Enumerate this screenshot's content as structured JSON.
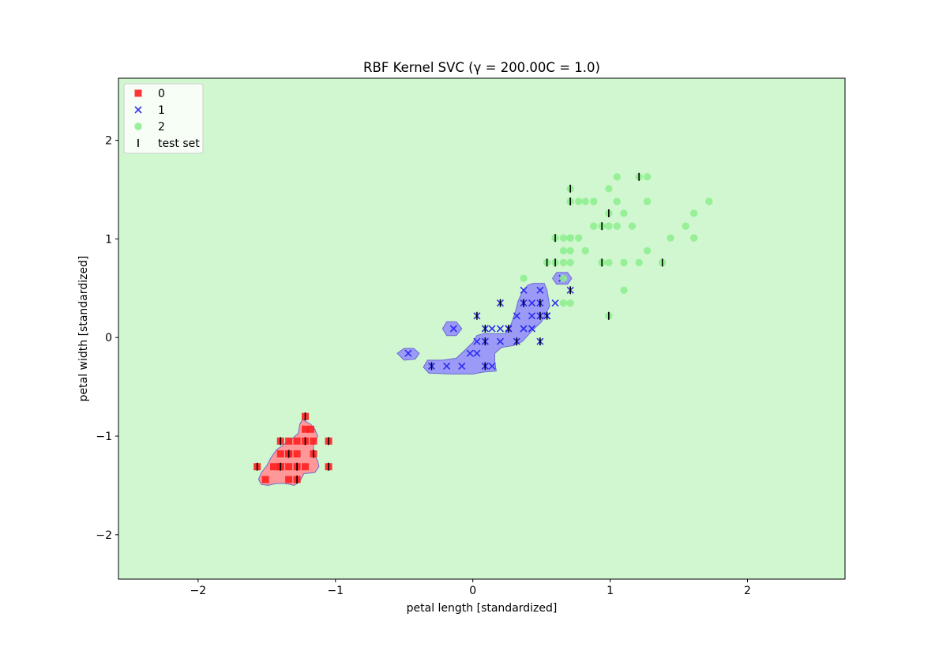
{
  "chart_data": {
    "type": "scatter",
    "title": "RBF Kernel SVC (γ = 200.00C = 1.0)",
    "xlabel": "petal length [standardized]",
    "ylabel": "petal width [standardized]",
    "xlim": [
      -2.58,
      2.71
    ],
    "ylim": [
      -2.45,
      2.63
    ],
    "xticks": [
      -2,
      -1,
      0,
      1,
      2
    ],
    "yticks": [
      -2,
      -1,
      0,
      1,
      2
    ],
    "xtick_labels": [
      "−2",
      "−1",
      "0",
      "1",
      "2"
    ],
    "ytick_labels": [
      "−2",
      "−1",
      "0",
      "1",
      "2"
    ],
    "grid": false,
    "legend_position": "upper-left",
    "colors": {
      "background_region": "#d1f7d1",
      "class0_region": "#ff9898",
      "class1_region": "#9b9bf7",
      "class0_marker": "#ff2020",
      "class1_marker": "#2020ee",
      "class2_marker": "#90ee90",
      "test_marker": "#000000"
    },
    "legend": [
      {
        "label": "0",
        "marker": "square"
      },
      {
        "label": "1",
        "marker": "x"
      },
      {
        "label": "2",
        "marker": "circle"
      },
      {
        "label": "test set",
        "marker": "vline"
      }
    ],
    "series": [
      {
        "name": "0",
        "marker": "square",
        "points": [
          [
            -1.22,
            -0.8
          ],
          [
            -1.28,
            -1.05
          ],
          [
            -1.22,
            -1.05
          ],
          [
            -1.05,
            -1.05
          ],
          [
            -1.4,
            -1.05
          ],
          [
            -1.34,
            -1.18
          ],
          [
            -1.28,
            -1.18
          ],
          [
            -1.4,
            -1.18
          ],
          [
            -1.16,
            -1.18
          ],
          [
            -1.45,
            -1.31
          ],
          [
            -1.4,
            -1.31
          ],
          [
            -1.34,
            -1.31
          ],
          [
            -1.28,
            -1.31
          ],
          [
            -1.22,
            -1.31
          ],
          [
            -1.57,
            -1.31
          ],
          [
            -1.05,
            -1.31
          ],
          [
            -1.51,
            -1.44
          ],
          [
            -1.34,
            -1.44
          ],
          [
            -1.28,
            -1.44
          ],
          [
            -1.4,
            -1.31
          ],
          [
            -1.34,
            -1.18
          ],
          [
            -1.22,
            -0.93
          ],
          [
            -1.18,
            -0.93
          ],
          [
            -1.16,
            -1.05
          ],
          [
            -1.34,
            -1.05
          ]
        ]
      },
      {
        "name": "1",
        "marker": "x",
        "points": [
          [
            0.37,
            0.48
          ],
          [
            0.49,
            0.48
          ],
          [
            0.71,
            0.48
          ],
          [
            0.37,
            0.35
          ],
          [
            0.43,
            0.35
          ],
          [
            0.49,
            0.35
          ],
          [
            0.2,
            0.35
          ],
          [
            0.6,
            0.35
          ],
          [
            0.32,
            0.22
          ],
          [
            0.43,
            0.22
          ],
          [
            0.49,
            0.22
          ],
          [
            0.54,
            0.22
          ],
          [
            0.03,
            0.22
          ],
          [
            0.09,
            0.09
          ],
          [
            0.14,
            0.09
          ],
          [
            0.2,
            0.09
          ],
          [
            0.26,
            0.09
          ],
          [
            0.37,
            0.09
          ],
          [
            0.43,
            0.09
          ],
          [
            -0.14,
            0.09
          ],
          [
            0.03,
            -0.04
          ],
          [
            0.09,
            -0.04
          ],
          [
            0.2,
            -0.04
          ],
          [
            0.32,
            -0.04
          ],
          [
            0.49,
            -0.04
          ],
          [
            -0.02,
            -0.16
          ],
          [
            0.03,
            -0.16
          ],
          [
            -0.47,
            -0.16
          ],
          [
            -0.3,
            -0.29
          ],
          [
            -0.19,
            -0.29
          ],
          [
            -0.08,
            -0.29
          ],
          [
            0.09,
            -0.29
          ],
          [
            0.14,
            -0.29
          ],
          [
            0.65,
            0.6
          ],
          [
            0.26,
            0.09
          ],
          [
            0.54,
            0.22
          ]
        ]
      },
      {
        "name": "2",
        "marker": "circle",
        "points": [
          [
            1.05,
            1.63
          ],
          [
            1.27,
            1.63
          ],
          [
            0.99,
            1.51
          ],
          [
            0.71,
            1.51
          ],
          [
            0.71,
            1.38
          ],
          [
            0.77,
            1.38
          ],
          [
            0.82,
            1.38
          ],
          [
            0.88,
            1.38
          ],
          [
            1.05,
            1.38
          ],
          [
            1.27,
            1.38
          ],
          [
            1.72,
            1.38
          ],
          [
            0.99,
            1.26
          ],
          [
            1.1,
            1.26
          ],
          [
            1.61,
            1.26
          ],
          [
            0.88,
            1.13
          ],
          [
            0.94,
            1.13
          ],
          [
            0.99,
            1.13
          ],
          [
            1.05,
            1.13
          ],
          [
            1.16,
            1.13
          ],
          [
            1.55,
            1.13
          ],
          [
            0.6,
            1.01
          ],
          [
            0.66,
            1.01
          ],
          [
            0.71,
            1.01
          ],
          [
            0.77,
            1.01
          ],
          [
            1.44,
            1.01
          ],
          [
            1.61,
            1.01
          ],
          [
            0.66,
            0.88
          ],
          [
            0.71,
            0.88
          ],
          [
            0.82,
            0.88
          ],
          [
            1.27,
            0.88
          ],
          [
            0.54,
            0.76
          ],
          [
            0.6,
            0.76
          ],
          [
            0.66,
            0.76
          ],
          [
            0.71,
            0.76
          ],
          [
            0.94,
            0.76
          ],
          [
            0.99,
            0.76
          ],
          [
            1.1,
            0.76
          ],
          [
            1.21,
            0.76
          ],
          [
            1.38,
            0.76
          ],
          [
            0.37,
            0.6
          ],
          [
            0.66,
            0.6
          ],
          [
            0.66,
            0.35
          ],
          [
            0.71,
            0.35
          ],
          [
            1.1,
            0.48
          ],
          [
            0.99,
            0.22
          ],
          [
            1.21,
            1.63
          ],
          [
            0.71,
            1.01
          ]
        ]
      },
      {
        "name": "test set",
        "marker": "vline",
        "points": [
          [
            -1.22,
            -0.8
          ],
          [
            -1.22,
            -1.05
          ],
          [
            -1.05,
            -1.05
          ],
          [
            -1.4,
            -1.05
          ],
          [
            -1.16,
            -1.18
          ],
          [
            -1.34,
            -1.18
          ],
          [
            -1.57,
            -1.31
          ],
          [
            -1.05,
            -1.31
          ],
          [
            -1.28,
            -1.31
          ],
          [
            -1.4,
            -1.31
          ],
          [
            -1.28,
            -1.44
          ],
          [
            0.03,
            0.22
          ],
          [
            0.2,
            0.35
          ],
          [
            0.71,
            0.48
          ],
          [
            0.37,
            0.35
          ],
          [
            0.49,
            0.35
          ],
          [
            0.09,
            0.09
          ],
          [
            0.26,
            0.09
          ],
          [
            0.49,
            0.22
          ],
          [
            0.54,
            0.22
          ],
          [
            0.09,
            -0.04
          ],
          [
            0.32,
            -0.04
          ],
          [
            0.49,
            -0.04
          ],
          [
            0.09,
            -0.29
          ],
          [
            -0.3,
            -0.29
          ],
          [
            0.71,
            1.51
          ],
          [
            0.71,
            1.38
          ],
          [
            1.21,
            1.63
          ],
          [
            0.99,
            1.26
          ],
          [
            0.94,
            1.13
          ],
          [
            0.6,
            1.01
          ],
          [
            0.54,
            0.76
          ],
          [
            0.6,
            0.76
          ],
          [
            0.94,
            0.76
          ],
          [
            1.38,
            0.76
          ],
          [
            0.99,
            0.22
          ]
        ]
      }
    ],
    "decision_regions": [
      {
        "class": "0",
        "polygon": [
          [
            -1.24,
            -0.83
          ],
          [
            -1.18,
            -0.88
          ],
          [
            -1.15,
            -0.93
          ],
          [
            -1.13,
            -1.0
          ],
          [
            -1.16,
            -1.08
          ],
          [
            -1.16,
            -1.18
          ],
          [
            -1.13,
            -1.25
          ],
          [
            -1.12,
            -1.31
          ],
          [
            -1.15,
            -1.37
          ],
          [
            -1.23,
            -1.38
          ],
          [
            -1.26,
            -1.46
          ],
          [
            -1.3,
            -1.5
          ],
          [
            -1.37,
            -1.48
          ],
          [
            -1.43,
            -1.48
          ],
          [
            -1.49,
            -1.5
          ],
          [
            -1.54,
            -1.49
          ],
          [
            -1.56,
            -1.44
          ],
          [
            -1.54,
            -1.37
          ],
          [
            -1.5,
            -1.3
          ],
          [
            -1.47,
            -1.22
          ],
          [
            -1.43,
            -1.14
          ],
          [
            -1.37,
            -1.08
          ],
          [
            -1.31,
            -1.02
          ],
          [
            -1.27,
            -0.97
          ],
          [
            -1.26,
            -0.88
          ]
        ]
      },
      {
        "class": "1",
        "polygon": [
          [
            0.44,
            0.55
          ],
          [
            0.52,
            0.55
          ],
          [
            0.54,
            0.48
          ],
          [
            0.55,
            0.4
          ],
          [
            0.56,
            0.32
          ],
          [
            0.53,
            0.24
          ],
          [
            0.5,
            0.16
          ],
          [
            0.44,
            0.08
          ],
          [
            0.4,
            0.02
          ],
          [
            0.36,
            -0.04
          ],
          [
            0.3,
            -0.08
          ],
          [
            0.21,
            -0.1
          ],
          [
            0.16,
            -0.16
          ],
          [
            0.16,
            -0.24
          ],
          [
            0.17,
            -0.34
          ],
          [
            0.08,
            -0.35
          ],
          [
            0.0,
            -0.37
          ],
          [
            -0.16,
            -0.37
          ],
          [
            -0.32,
            -0.36
          ],
          [
            -0.36,
            -0.3
          ],
          [
            -0.33,
            -0.23
          ],
          [
            -0.22,
            -0.23
          ],
          [
            -0.12,
            -0.21
          ],
          [
            -0.06,
            -0.13
          ],
          [
            0.0,
            -0.05
          ],
          [
            0.03,
            0.02
          ],
          [
            0.08,
            0.04
          ],
          [
            0.14,
            0.04
          ],
          [
            0.24,
            0.04
          ],
          [
            0.28,
            0.14
          ],
          [
            0.31,
            0.26
          ],
          [
            0.33,
            0.37
          ],
          [
            0.36,
            0.46
          ],
          [
            0.4,
            0.53
          ]
        ]
      },
      {
        "class": "1",
        "polygon": [
          [
            -0.5,
            -0.11
          ],
          [
            -0.43,
            -0.11
          ],
          [
            -0.39,
            -0.16
          ],
          [
            -0.42,
            -0.22
          ],
          [
            -0.5,
            -0.23
          ],
          [
            -0.55,
            -0.16
          ]
        ]
      },
      {
        "class": "1",
        "polygon": [
          [
            -0.19,
            0.16
          ],
          [
            -0.12,
            0.16
          ],
          [
            -0.08,
            0.09
          ],
          [
            -0.12,
            0.02
          ],
          [
            -0.19,
            0.02
          ],
          [
            -0.22,
            0.09
          ]
        ]
      },
      {
        "class": "1",
        "polygon": [
          [
            0.61,
            0.66
          ],
          [
            0.69,
            0.66
          ],
          [
            0.72,
            0.6
          ],
          [
            0.69,
            0.54
          ],
          [
            0.61,
            0.54
          ],
          [
            0.58,
            0.6
          ]
        ]
      }
    ]
  }
}
